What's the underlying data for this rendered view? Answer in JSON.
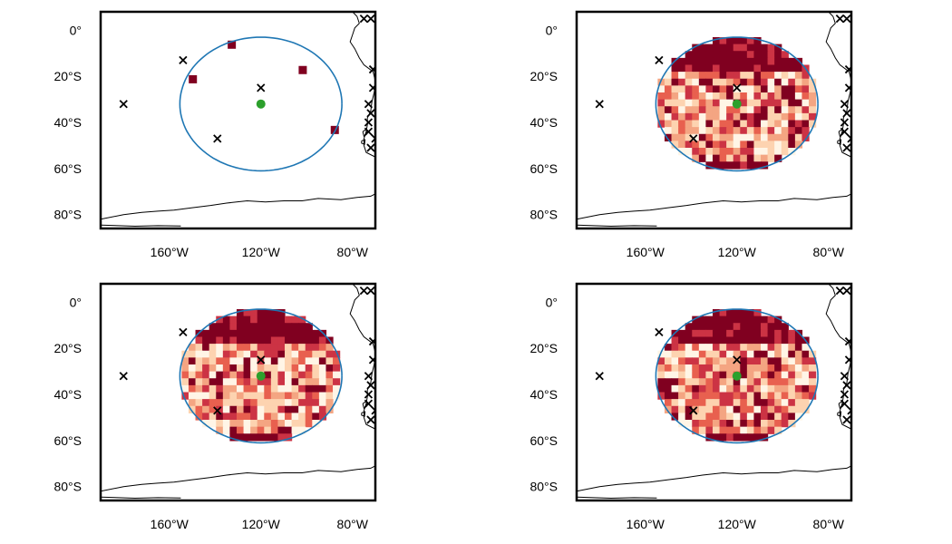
{
  "figure": {
    "x_ticks": [
      "160°W",
      "120°W",
      "80°W"
    ],
    "y_ticks": [
      "0°",
      "20°S",
      "40°S",
      "60°S",
      "80°S"
    ]
  },
  "colors": {
    "circle": "#1f77b4",
    "center_marker": "#2ca02c",
    "x_marker": "#000000",
    "cell_palette": [
      "#fff5e6",
      "#fdd3b0",
      "#f4a582",
      "#e8604f",
      "#cc3344",
      "#800020"
    ]
  },
  "chart_data": {
    "type": "map",
    "projection": "equirectangular",
    "x_range": [
      -190,
      -70
    ],
    "y_range": [
      -86,
      8
    ],
    "center": {
      "lon": -120,
      "lat": -32
    },
    "circle_radius_deg": 29,
    "x_markers": [
      {
        "lon": -180,
        "lat": -32
      },
      {
        "lon": -154,
        "lat": -13
      },
      {
        "lon": -120,
        "lat": -25
      },
      {
        "lon": -139,
        "lat": -47
      },
      {
        "lon": -75,
        "lat": 5
      },
      {
        "lon": -72,
        "lat": 5
      },
      {
        "lon": -71,
        "lat": -17
      },
      {
        "lon": -71,
        "lat": -25
      },
      {
        "lon": -73,
        "lat": -32
      },
      {
        "lon": -72,
        "lat": -36
      },
      {
        "lon": -73,
        "lat": -40
      },
      {
        "lon": -73,
        "lat": -44
      },
      {
        "lon": -72,
        "lat": -51
      },
      {
        "lon": -70,
        "lat": -47
      },
      {
        "lon": -68,
        "lat": -32
      },
      {
        "lon": -66,
        "lat": -37
      },
      {
        "lon": -68,
        "lat": -40
      },
      {
        "lon": -64,
        "lat": -6
      }
    ],
    "panels": [
      {
        "id": 1,
        "cell_density": 0.0
      },
      {
        "id": 2,
        "cell_density": 1.0
      },
      {
        "id": 3,
        "cell_density": 1.0
      },
      {
        "id": 4,
        "cell_density": 1.0
      }
    ]
  }
}
